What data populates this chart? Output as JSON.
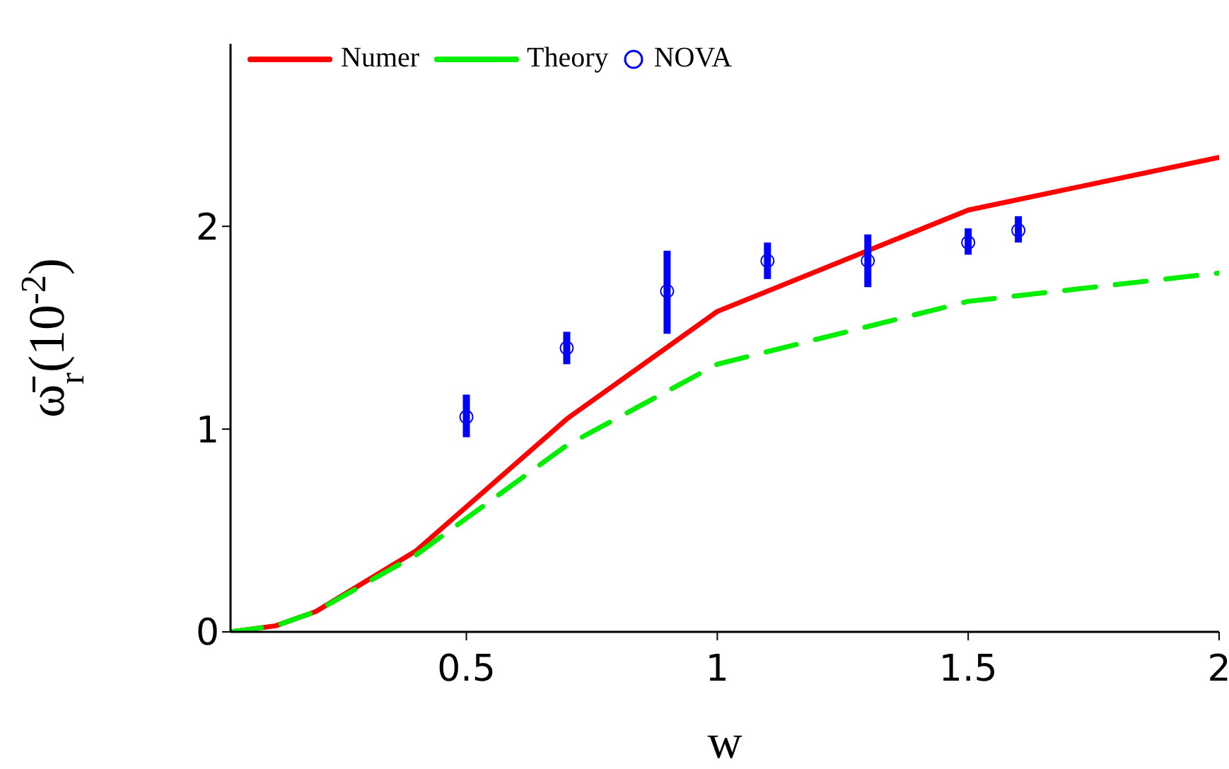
{
  "chart_data": {
    "type": "line",
    "xlabel": "w",
    "ylabel": "ω̄$_{r}$(10$^{-2}$)",
    "xlim": [
      0.03,
      2
    ],
    "xticks": [
      0.5,
      1,
      1.5,
      2
    ],
    "ylim": [
      0,
      2.9
    ],
    "yticks": [
      0,
      1,
      2
    ],
    "grid": false,
    "legend": "top left",
    "series": [
      {
        "name": "Numer",
        "color": "#ff0000",
        "line_style": "solid",
        "marker": "none",
        "x": [
          0.03,
          0.12,
          0.2,
          0.4,
          0.7,
          1.0,
          1.5,
          2.0
        ],
        "values": [
          0,
          0.03,
          0.1,
          0.4,
          1.05,
          1.58,
          2.08,
          2.34
        ]
      },
      {
        "name": "Theory",
        "color": "#00ee00",
        "line_style": "dashed",
        "marker": "none",
        "x": [
          0.03,
          0.12,
          0.2,
          0.4,
          0.7,
          1.0,
          1.5,
          2.0
        ],
        "values": [
          0,
          0.03,
          0.1,
          0.38,
          0.92,
          1.32,
          1.63,
          1.77
        ]
      },
      {
        "name": "NOVA",
        "type": "scatter",
        "color": "#0000ff",
        "marker": "circle",
        "x": [
          0.5,
          0.7,
          0.9,
          1.1,
          1.3,
          1.5,
          1.6
        ],
        "values": [
          1.06,
          1.4,
          1.68,
          1.83,
          1.83,
          1.92,
          1.98
        ],
        "errors": [
          [
            0.96,
            1.17
          ],
          [
            1.32,
            1.48
          ],
          [
            1.47,
            1.88
          ],
          [
            1.74,
            1.92
          ],
          [
            1.7,
            1.96
          ],
          [
            1.86,
            1.99
          ],
          [
            1.92,
            2.05
          ]
        ]
      }
    ]
  }
}
